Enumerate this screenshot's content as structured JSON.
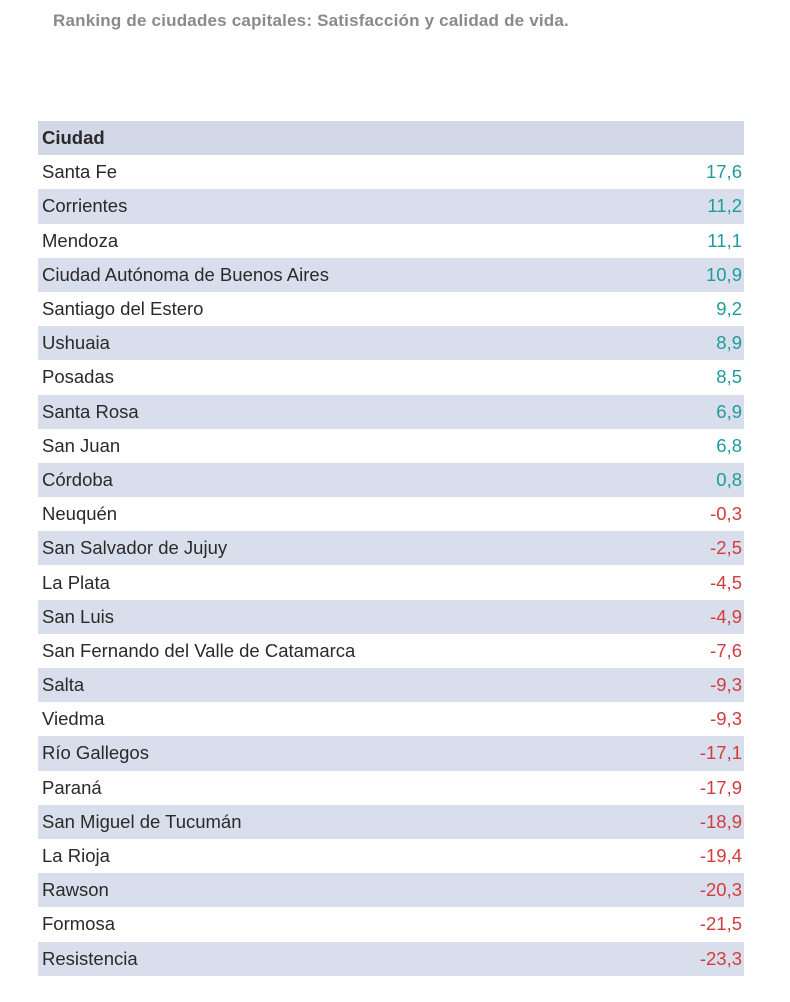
{
  "title": "Ranking de ciudades capitales: Satisfacción y calidad de vida.",
  "table": {
    "header": {
      "city": "Ciudad",
      "value": ""
    },
    "colors": {
      "positive": "#1e9c9c",
      "negative": "#d23c3c"
    },
    "rows": [
      {
        "city": "Santa Fe",
        "value": "17,6",
        "sign": "positive"
      },
      {
        "city": "Corrientes",
        "value": "11,2",
        "sign": "positive"
      },
      {
        "city": "Mendoza",
        "value": "11,1",
        "sign": "positive"
      },
      {
        "city": "Ciudad Autónoma de Buenos Aires",
        "value": "10,9",
        "sign": "positive"
      },
      {
        "city": "Santiago del Estero",
        "value": "9,2",
        "sign": "positive"
      },
      {
        "city": "Ushuaia",
        "value": "8,9",
        "sign": "positive"
      },
      {
        "city": "Posadas",
        "value": "8,5",
        "sign": "positive"
      },
      {
        "city": "Santa Rosa",
        "value": "6,9",
        "sign": "positive"
      },
      {
        "city": "San Juan",
        "value": "6,8",
        "sign": "positive"
      },
      {
        "city": "Córdoba",
        "value": "0,8",
        "sign": "positive"
      },
      {
        "city": "Neuquén",
        "value": "-0,3",
        "sign": "negative"
      },
      {
        "city": "San Salvador de Jujuy",
        "value": "-2,5",
        "sign": "negative"
      },
      {
        "city": "La Plata",
        "value": "-4,5",
        "sign": "negative"
      },
      {
        "city": "San Luis",
        "value": "-4,9",
        "sign": "negative"
      },
      {
        "city": "San Fernando del Valle de Catamarca",
        "value": "-7,6",
        "sign": "negative"
      },
      {
        "city": "Salta",
        "value": "-9,3",
        "sign": "negative"
      },
      {
        "city": "Viedma",
        "value": "-9,3",
        "sign": "negative"
      },
      {
        "city": "Río Gallegos",
        "value": "-17,1",
        "sign": "negative"
      },
      {
        "city": "Paraná",
        "value": "-17,9",
        "sign": "negative"
      },
      {
        "city": "San Miguel de Tucumán",
        "value": "-18,9",
        "sign": "negative"
      },
      {
        "city": "La Rioja",
        "value": "-19,4",
        "sign": "negative"
      },
      {
        "city": "Rawson",
        "value": "-20,3",
        "sign": "negative"
      },
      {
        "city": "Formosa",
        "value": "-21,5",
        "sign": "negative"
      },
      {
        "city": "Resistencia",
        "value": "-23,3",
        "sign": "negative"
      }
    ]
  }
}
